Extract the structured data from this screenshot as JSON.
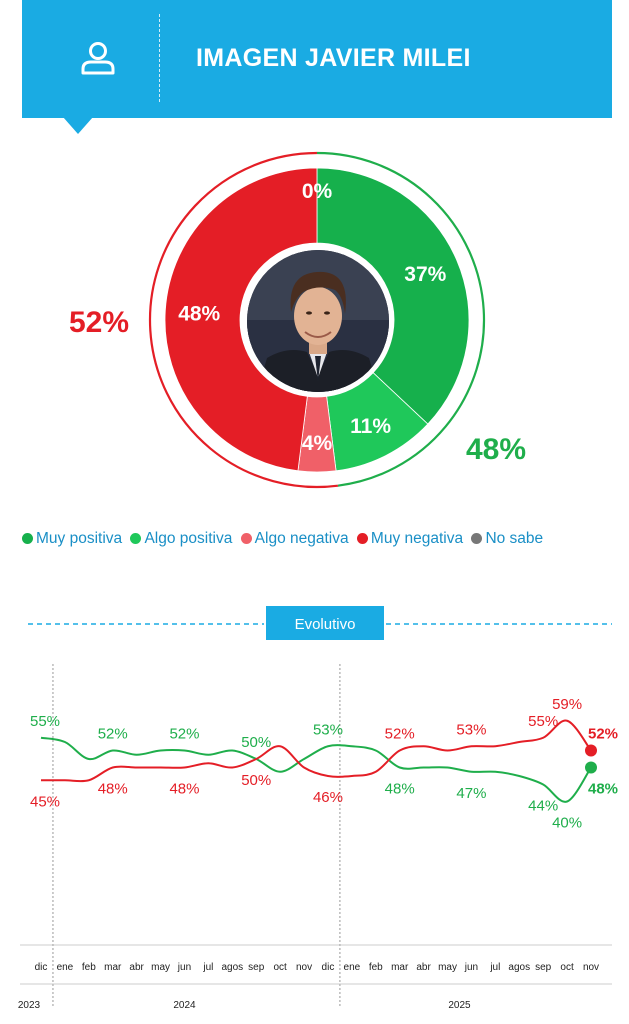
{
  "header": {
    "title": "IMAGEN JAVIER MILEI",
    "icon": "user-icon"
  },
  "donut": {
    "segments": [
      {
        "label": "0%",
        "value": 0,
        "category": "No sabe",
        "color": "#888888"
      },
      {
        "label": "37%",
        "value": 37,
        "category": "Muy positiva",
        "color": "#16b04c"
      },
      {
        "label": "11%",
        "value": 11,
        "category": "Algo positiva",
        "color": "#1fc85a"
      },
      {
        "label": "4%",
        "value": 4,
        "category": "Algo negativa",
        "color": "#f06068"
      },
      {
        "label": "48%",
        "value": 48,
        "category": "Muy negativa",
        "color": "#e41e26"
      }
    ],
    "total_negative": "52%",
    "total_positive": "48%",
    "center_photo": "portrait"
  },
  "legend": [
    {
      "label": "Muy positiva",
      "color": "#16b04c"
    },
    {
      "label": "Algo positiva",
      "color": "#1fc85a"
    },
    {
      "label": "Algo negativa",
      "color": "#f06068"
    },
    {
      "label": "Muy negativa",
      "color": "#e41e26"
    },
    {
      "label": "No sabe",
      "color": "#777777"
    }
  ],
  "evolutivo_label": "Evolutivo",
  "chart_data": {
    "type": "line",
    "x": [
      "dic",
      "ene",
      "feb",
      "mar",
      "abr",
      "may",
      "jun",
      "jul",
      "agos",
      "sep",
      "oct",
      "nov",
      "dic",
      "ene",
      "feb",
      "mar",
      "abr",
      "may",
      "jun",
      "jul",
      "agos",
      "sep",
      "oct",
      "nov"
    ],
    "years": [
      {
        "label": "2023",
        "month_index": 0
      },
      {
        "label": "2024",
        "month_index": 6
      },
      {
        "label": "2025",
        "month_index": 17.5
      }
    ],
    "series": [
      {
        "name": "Positiva",
        "color": "#1fae4b",
        "values": [
          55,
          54,
          50,
          52,
          51,
          52,
          52,
          51,
          52,
          50,
          47,
          50,
          53,
          53,
          52,
          48,
          48,
          48,
          47,
          47,
          46,
          44,
          40,
          48
        ]
      },
      {
        "name": "Negativa",
        "color": "#e41e26",
        "values": [
          45,
          45,
          45,
          48,
          48,
          48,
          48,
          49,
          48,
          50,
          53,
          48,
          46,
          46,
          47,
          52,
          53,
          52,
          53,
          53,
          54,
          55,
          59,
          52
        ]
      }
    ],
    "labels": [
      {
        "series": 0,
        "index": 0,
        "text": "55%",
        "pos": "above"
      },
      {
        "series": 1,
        "index": 0,
        "text": "45%",
        "pos": "below"
      },
      {
        "series": 0,
        "index": 3,
        "text": "52%",
        "pos": "above"
      },
      {
        "series": 1,
        "index": 3,
        "text": "48%",
        "pos": "below"
      },
      {
        "series": 0,
        "index": 6,
        "text": "52%",
        "pos": "above"
      },
      {
        "series": 1,
        "index": 6,
        "text": "48%",
        "pos": "below"
      },
      {
        "series": 0,
        "index": 9,
        "text": "50%",
        "pos": "above"
      },
      {
        "series": 1,
        "index": 9,
        "text": "50%",
        "pos": "below"
      },
      {
        "series": 0,
        "index": 12,
        "text": "53%",
        "pos": "above"
      },
      {
        "series": 1,
        "index": 12,
        "text": "46%",
        "pos": "below"
      },
      {
        "series": 1,
        "index": 15,
        "text": "52%",
        "pos": "above"
      },
      {
        "series": 0,
        "index": 15,
        "text": "48%",
        "pos": "below"
      },
      {
        "series": 1,
        "index": 18,
        "text": "53%",
        "pos": "above"
      },
      {
        "series": 0,
        "index": 18,
        "text": "47%",
        "pos": "below"
      },
      {
        "series": 1,
        "index": 21,
        "text": "55%",
        "pos": "above"
      },
      {
        "series": 0,
        "index": 21,
        "text": "44%",
        "pos": "below"
      },
      {
        "series": 1,
        "index": 22,
        "text": "59%",
        "pos": "above"
      },
      {
        "series": 0,
        "index": 22,
        "text": "40%",
        "pos": "below"
      },
      {
        "series": 1,
        "index": 23,
        "text": "52%",
        "pos": "above",
        "bold": true
      },
      {
        "series": 0,
        "index": 23,
        "text": "48%",
        "pos": "below",
        "bold": true
      }
    ],
    "ylim": [
      30,
      70
    ],
    "grid": false
  }
}
